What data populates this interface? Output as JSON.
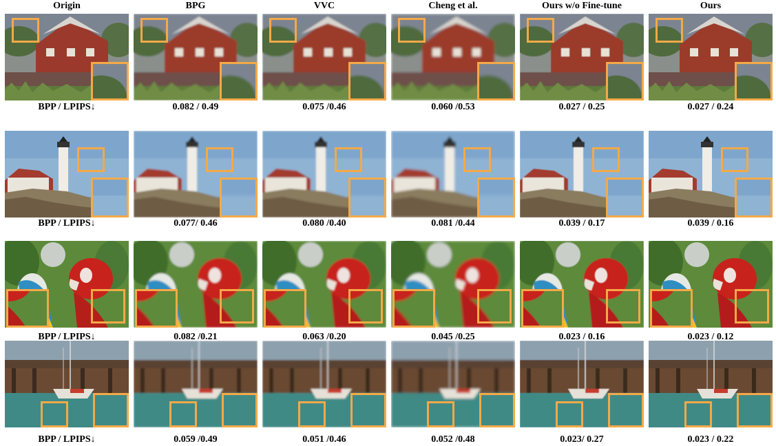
{
  "columns": [
    "Origin",
    "BPG",
    "VVC",
    "Cheng et al.",
    "Ours w/o Fine-tune",
    "Ours"
  ],
  "rows": [
    {
      "scene": "red-barn",
      "labels": [
        "BPP / LPIPS↓",
        "0.082 / 0.49",
        "0.075 /0.46",
        "0.060 /0.53",
        "0.027 / 0.25",
        "0.027 / 0.24"
      ]
    },
    {
      "scene": "lighthouse",
      "labels": [
        "BPP / LPIPS↓",
        "0.077/ 0.46",
        "0.080 /0.40",
        "0.081 /0.44",
        "0.039 / 0.17",
        "0.039 / 0.16"
      ]
    },
    {
      "scene": "parrots",
      "labels": [
        "BPP / LPIPS↓",
        "0.082 /0.21",
        "0.063 /0.20",
        "0.045 /0.25",
        "0.023 / 0.16",
        "0.023 / 0.12"
      ]
    },
    {
      "scene": "pier-boat",
      "labels": [
        "BPP / LPIPS↓",
        "0.059 /0.49",
        "0.051 /0.46",
        "0.052 /0.48",
        "0.023/ 0.27",
        "0.023 / 0.22"
      ]
    }
  ],
  "colors": {
    "zoom_box": "#f5a947"
  }
}
